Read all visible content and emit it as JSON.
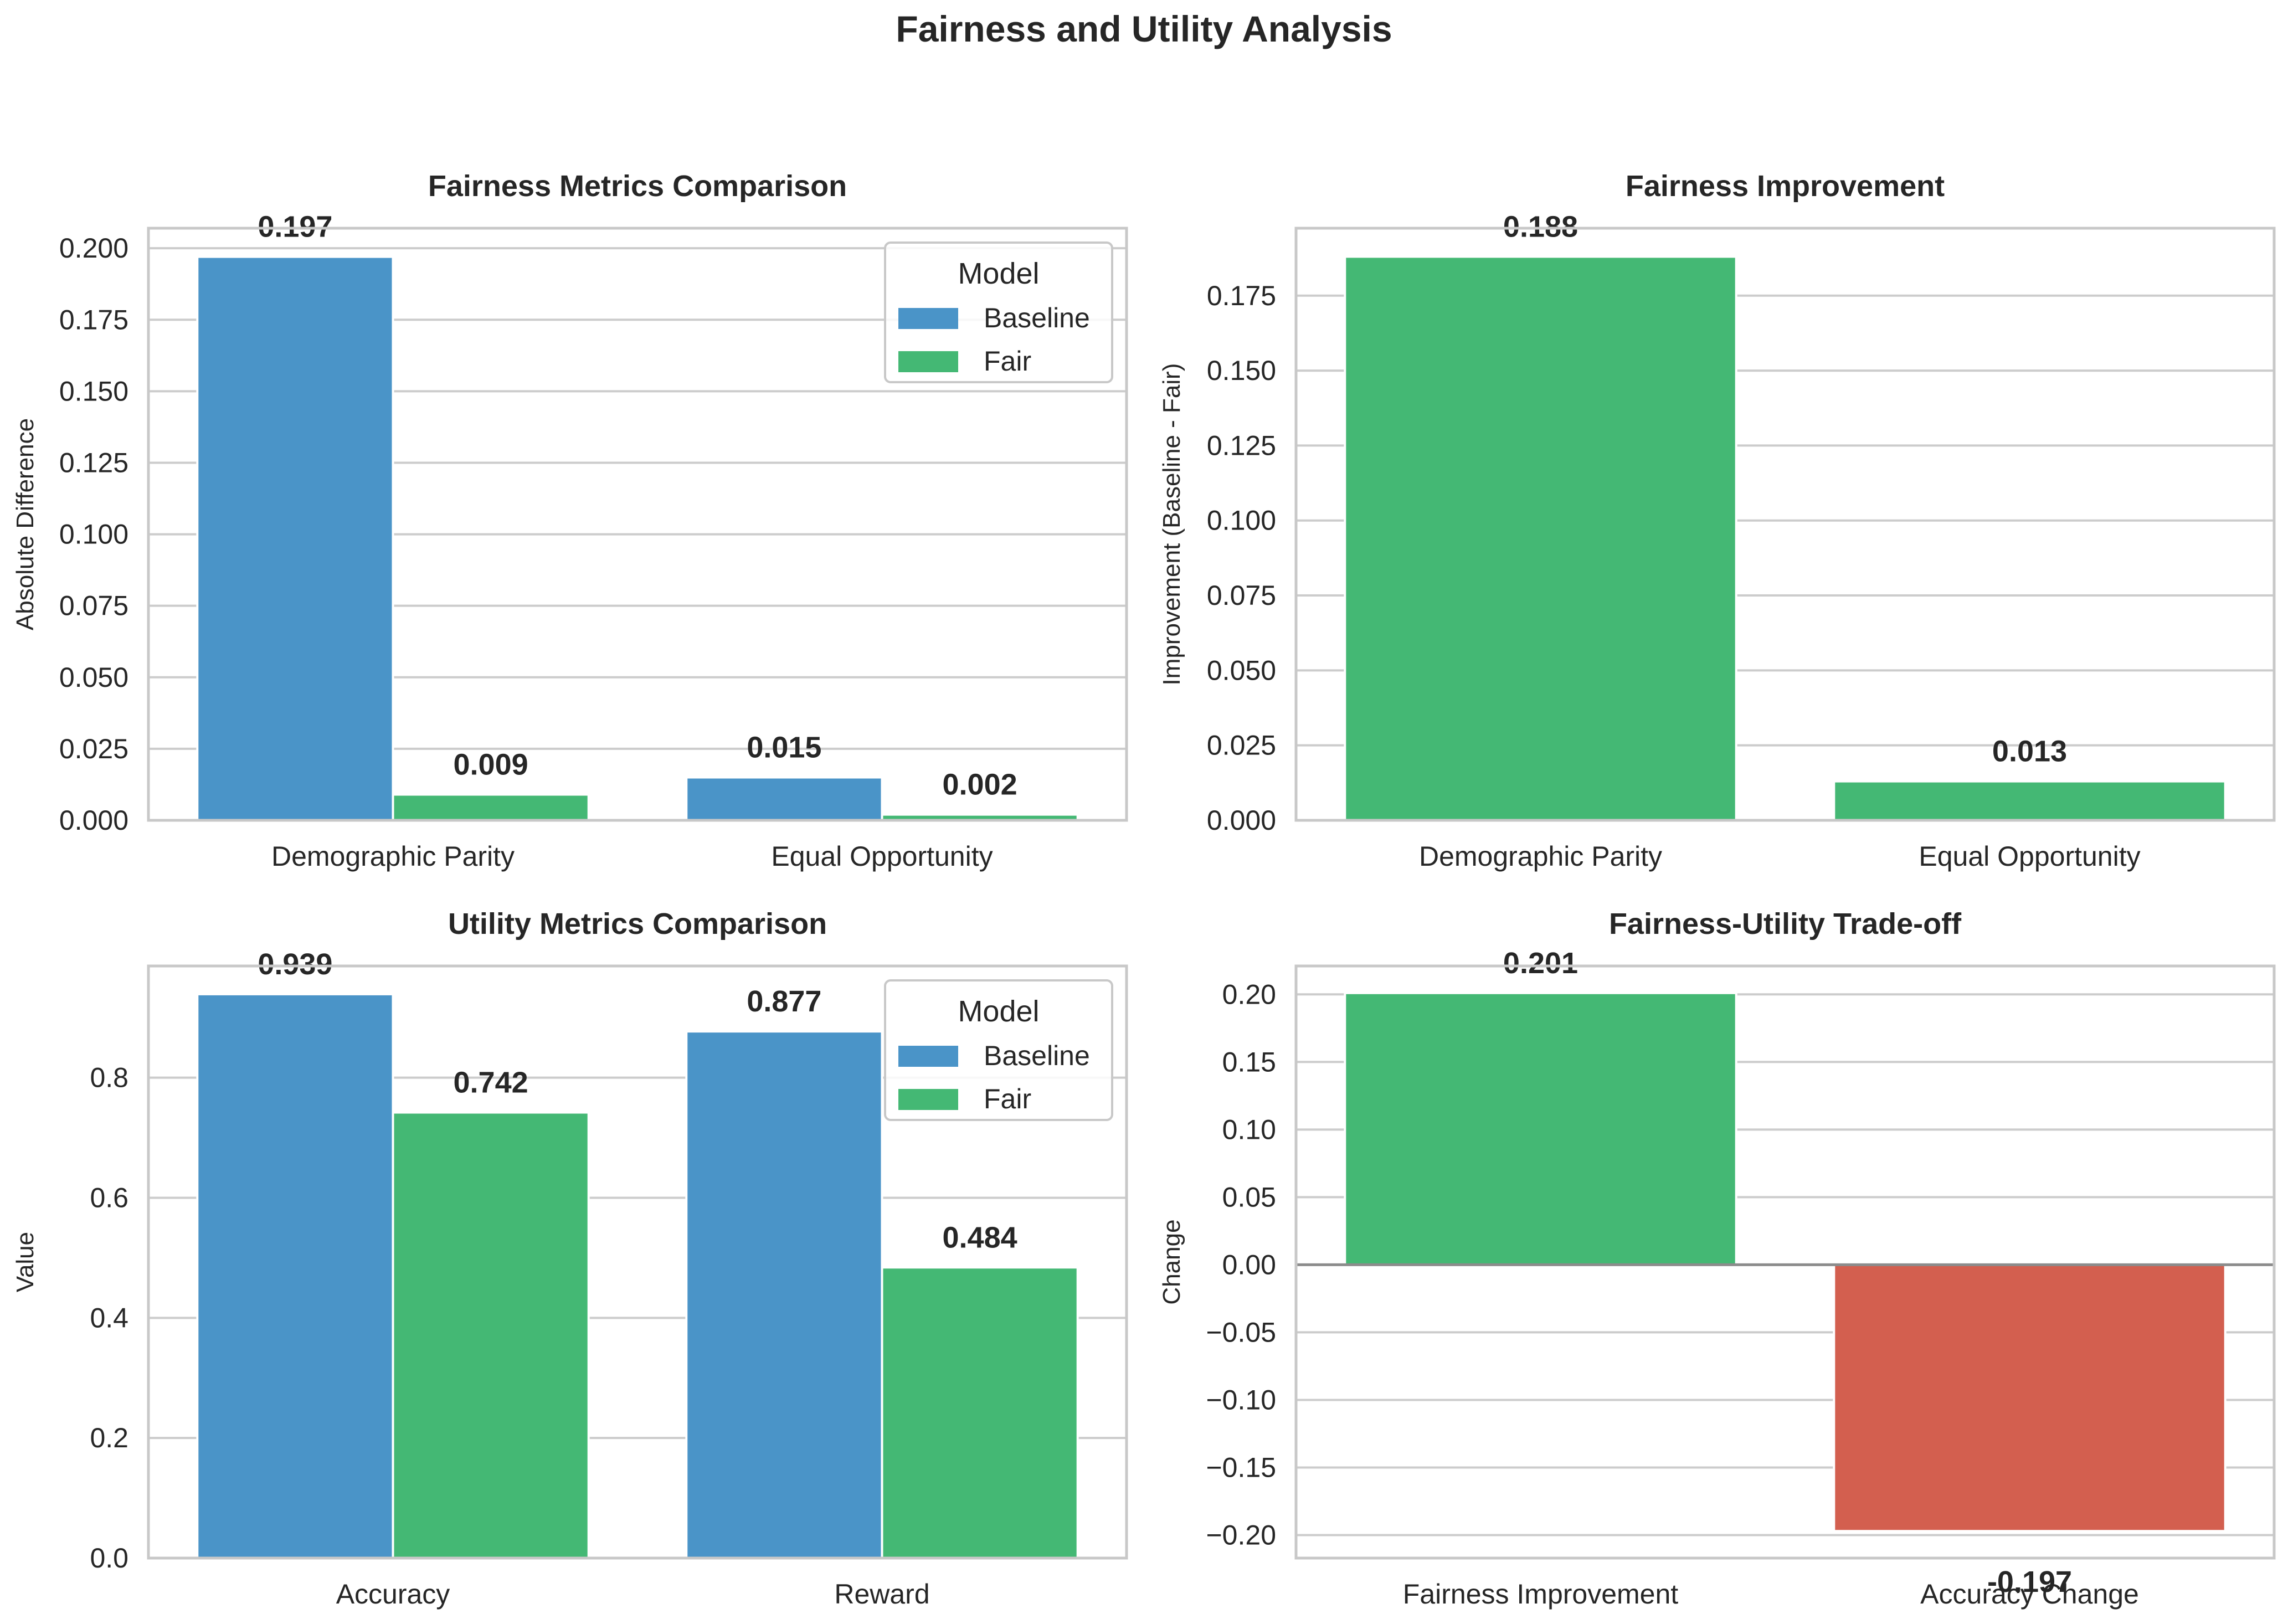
{
  "figure": {
    "title": "Fairness and Utility Analysis"
  },
  "colors": {
    "baseline": "#4a94c8",
    "fair": "#44b874",
    "negative": "#d35f4f",
    "grid": "#cccccc",
    "spine": "#c8c8c8",
    "text": "#262626",
    "zero_line": "#8c8c8c"
  },
  "chart_data": [
    {
      "type": "bar",
      "title": "Fairness Metrics Comparison",
      "xlabel": "",
      "ylabel": "Absolute Difference",
      "categories": [
        "Demographic Parity",
        "Equal Opportunity"
      ],
      "series": [
        {
          "name": "Baseline",
          "color": "#4a94c8",
          "values": [
            0.197,
            0.015
          ],
          "labels": [
            "0.197",
            "0.015"
          ]
        },
        {
          "name": "Fair",
          "color": "#44b874",
          "values": [
            0.009,
            0.002
          ],
          "labels": [
            "0.009",
            "0.002"
          ]
        }
      ],
      "ylim": [
        0,
        0.207
      ],
      "yticks": [
        0,
        0.025,
        0.05,
        0.075,
        0.1,
        0.125,
        0.15,
        0.175,
        0.2
      ],
      "ytick_labels": [
        "0.000",
        "0.025",
        "0.050",
        "0.075",
        "0.100",
        "0.125",
        "0.150",
        "0.175",
        "0.200"
      ],
      "legend": {
        "title": "Model",
        "position": "top-right"
      },
      "grid": true
    },
    {
      "type": "bar",
      "title": "Fairness Improvement",
      "xlabel": "",
      "ylabel": "Improvement (Baseline - Fair)",
      "categories": [
        "Demographic Parity",
        "Equal Opportunity"
      ],
      "series": [
        {
          "color": "#44b874",
          "values": [
            0.188,
            0.013
          ],
          "labels": [
            "0.188",
            "0.013"
          ]
        }
      ],
      "ylim": [
        0,
        0.1975
      ],
      "yticks": [
        0,
        0.025,
        0.05,
        0.075,
        0.1,
        0.125,
        0.15,
        0.175
      ],
      "ytick_labels": [
        "0.000",
        "0.025",
        "0.050",
        "0.075",
        "0.100",
        "0.125",
        "0.150",
        "0.175"
      ],
      "grid": true
    },
    {
      "type": "bar",
      "title": "Utility Metrics Comparison",
      "xlabel": "",
      "ylabel": "Value",
      "categories": [
        "Accuracy",
        "Reward"
      ],
      "series": [
        {
          "name": "Baseline",
          "color": "#4a94c8",
          "values": [
            0.939,
            0.877
          ],
          "labels": [
            "0.939",
            "0.877"
          ]
        },
        {
          "name": "Fair",
          "color": "#44b874",
          "values": [
            0.742,
            0.484
          ],
          "labels": [
            "0.742",
            "0.484"
          ]
        }
      ],
      "ylim": [
        0,
        0.986
      ],
      "yticks": [
        0,
        0.2,
        0.4,
        0.6,
        0.8
      ],
      "ytick_labels": [
        "0.0",
        "0.2",
        "0.4",
        "0.6",
        "0.8"
      ],
      "legend": {
        "title": "Model",
        "position": "top-right"
      },
      "grid": true
    },
    {
      "type": "bar",
      "title": "Fairness-Utility Trade-off",
      "xlabel": "",
      "ylabel": "Change",
      "categories": [
        "Fairness Improvement",
        "Accuracy Change"
      ],
      "series": [
        {
          "values": [
            0.201,
            -0.197
          ],
          "labels": [
            "0.201",
            "-0.197"
          ],
          "colors": [
            "#44b874",
            "#d35f4f"
          ]
        }
      ],
      "ylim": [
        -0.217,
        0.221
      ],
      "yticks": [
        -0.2,
        -0.15,
        -0.1,
        -0.05,
        0,
        0.05,
        0.1,
        0.15,
        0.2
      ],
      "ytick_labels": [
        "−0.20",
        "−0.15",
        "−0.10",
        "−0.05",
        "0.00",
        "0.05",
        "0.10",
        "0.15",
        "0.20"
      ],
      "zero_line": true,
      "grid": true
    }
  ]
}
